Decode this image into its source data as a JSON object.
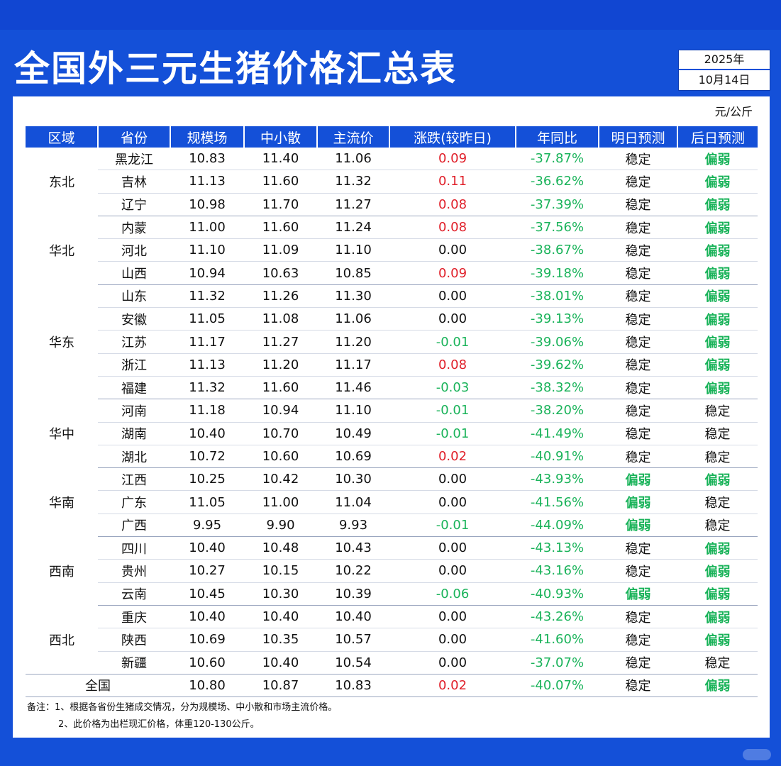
{
  "title": "全国外三元生猪价格汇总表",
  "date": {
    "year": "2025年",
    "day": "10月14日"
  },
  "unit": "元/公斤",
  "headers": [
    "区域",
    "省份",
    "规模场",
    "中小散",
    "主流价",
    "涨跌(较昨日)",
    "年同比",
    "明日预测",
    "后日预测"
  ],
  "regions": [
    {
      "name": "东北",
      "rows": [
        {
          "province": "黑龙江",
          "large": "10.83",
          "small": "11.40",
          "main": "11.06",
          "change": "0.09",
          "change_dir": "up",
          "yoy": "-37.87%",
          "tomorrow": "稳定",
          "after": "偏弱"
        },
        {
          "province": "吉林",
          "large": "11.13",
          "small": "11.60",
          "main": "11.32",
          "change": "0.11",
          "change_dir": "up",
          "yoy": "-36.62%",
          "tomorrow": "稳定",
          "after": "偏弱"
        },
        {
          "province": "辽宁",
          "large": "10.98",
          "small": "11.70",
          "main": "11.27",
          "change": "0.08",
          "change_dir": "up",
          "yoy": "-37.39%",
          "tomorrow": "稳定",
          "after": "偏弱"
        }
      ]
    },
    {
      "name": "华北",
      "rows": [
        {
          "province": "内蒙",
          "large": "11.00",
          "small": "11.60",
          "main": "11.24",
          "change": "0.08",
          "change_dir": "up",
          "yoy": "-37.56%",
          "tomorrow": "稳定",
          "after": "偏弱"
        },
        {
          "province": "河北",
          "large": "11.10",
          "small": "11.09",
          "main": "11.10",
          "change": "0.00",
          "change_dir": "flat",
          "yoy": "-38.67%",
          "tomorrow": "稳定",
          "after": "偏弱"
        },
        {
          "province": "山西",
          "large": "10.94",
          "small": "10.63",
          "main": "10.85",
          "change": "0.09",
          "change_dir": "up",
          "yoy": "-39.18%",
          "tomorrow": "稳定",
          "after": "偏弱"
        }
      ]
    },
    {
      "name": "华东",
      "rows": [
        {
          "province": "山东",
          "large": "11.32",
          "small": "11.26",
          "main": "11.30",
          "change": "0.00",
          "change_dir": "flat",
          "yoy": "-38.01%",
          "tomorrow": "稳定",
          "after": "偏弱"
        },
        {
          "province": "安徽",
          "large": "11.05",
          "small": "11.08",
          "main": "11.06",
          "change": "0.00",
          "change_dir": "flat",
          "yoy": "-39.13%",
          "tomorrow": "稳定",
          "after": "偏弱"
        },
        {
          "province": "江苏",
          "large": "11.17",
          "small": "11.27",
          "main": "11.20",
          "change": "-0.01",
          "change_dir": "down",
          "yoy": "-39.06%",
          "tomorrow": "稳定",
          "after": "偏弱"
        },
        {
          "province": "浙江",
          "large": "11.13",
          "small": "11.20",
          "main": "11.17",
          "change": "0.08",
          "change_dir": "up",
          "yoy": "-39.62%",
          "tomorrow": "稳定",
          "after": "偏弱"
        },
        {
          "province": "福建",
          "large": "11.32",
          "small": "11.60",
          "main": "11.46",
          "change": "-0.03",
          "change_dir": "down",
          "yoy": "-38.32%",
          "tomorrow": "稳定",
          "after": "偏弱"
        }
      ]
    },
    {
      "name": "华中",
      "rows": [
        {
          "province": "河南",
          "large": "11.18",
          "small": "10.94",
          "main": "11.10",
          "change": "-0.01",
          "change_dir": "down",
          "yoy": "-38.20%",
          "tomorrow": "稳定",
          "after": "稳定"
        },
        {
          "province": "湖南",
          "large": "10.40",
          "small": "10.70",
          "main": "10.49",
          "change": "-0.01",
          "change_dir": "down",
          "yoy": "-41.49%",
          "tomorrow": "稳定",
          "after": "稳定"
        },
        {
          "province": "湖北",
          "large": "10.72",
          "small": "10.60",
          "main": "10.69",
          "change": "0.02",
          "change_dir": "up",
          "yoy": "-40.91%",
          "tomorrow": "稳定",
          "after": "稳定"
        }
      ]
    },
    {
      "name": "华南",
      "rows": [
        {
          "province": "江西",
          "large": "10.25",
          "small": "10.42",
          "main": "10.30",
          "change": "0.00",
          "change_dir": "flat",
          "yoy": "-43.93%",
          "tomorrow": "偏弱",
          "after": "偏弱"
        },
        {
          "province": "广东",
          "large": "11.05",
          "small": "11.00",
          "main": "11.04",
          "change": "0.00",
          "change_dir": "flat",
          "yoy": "-41.56%",
          "tomorrow": "偏弱",
          "after": "稳定"
        },
        {
          "province": "广西",
          "large": "9.95",
          "small": "9.90",
          "main": "9.93",
          "change": "-0.01",
          "change_dir": "down",
          "yoy": "-44.09%",
          "tomorrow": "偏弱",
          "after": "稳定"
        }
      ]
    },
    {
      "name": "西南",
      "rows": [
        {
          "province": "四川",
          "large": "10.40",
          "small": "10.48",
          "main": "10.43",
          "change": "0.00",
          "change_dir": "flat",
          "yoy": "-43.13%",
          "tomorrow": "稳定",
          "after": "偏弱"
        },
        {
          "province": "贵州",
          "large": "10.27",
          "small": "10.15",
          "main": "10.22",
          "change": "0.00",
          "change_dir": "flat",
          "yoy": "-43.16%",
          "tomorrow": "稳定",
          "after": "偏弱"
        },
        {
          "province": "云南",
          "large": "10.45",
          "small": "10.30",
          "main": "10.39",
          "change": "-0.06",
          "change_dir": "down",
          "yoy": "-40.93%",
          "tomorrow": "偏弱",
          "after": "偏弱"
        }
      ]
    },
    {
      "name": "西北",
      "rows": [
        {
          "province": "重庆",
          "large": "10.40",
          "small": "10.40",
          "main": "10.40",
          "change": "0.00",
          "change_dir": "flat",
          "yoy": "-43.26%",
          "tomorrow": "稳定",
          "after": "偏弱"
        },
        {
          "province": "陕西",
          "large": "10.69",
          "small": "10.35",
          "main": "10.57",
          "change": "0.00",
          "change_dir": "flat",
          "yoy": "-41.60%",
          "tomorrow": "稳定",
          "after": "偏弱"
        },
        {
          "province": "新疆",
          "large": "10.60",
          "small": "10.40",
          "main": "10.54",
          "change": "0.00",
          "change_dir": "flat",
          "yoy": "-37.07%",
          "tomorrow": "稳定",
          "after": "稳定"
        }
      ]
    }
  ],
  "national": {
    "label": "全国",
    "large": "10.80",
    "small": "10.87",
    "main": "10.83",
    "change": "0.02",
    "change_dir": "up",
    "yoy": "-40.07%",
    "tomorrow": "稳定",
    "after": "偏弱"
  },
  "notes": [
    "备注：1、根据各省份生猪成交情况，分为规模场、中小散和市场主流价格。",
    "2、此价格为出栏现汇价格，体重120-130公斤。"
  ],
  "colors": {
    "brand_blue": "#1450d8",
    "up_red": "#e0202a",
    "down_green": "#1ab35a"
  }
}
